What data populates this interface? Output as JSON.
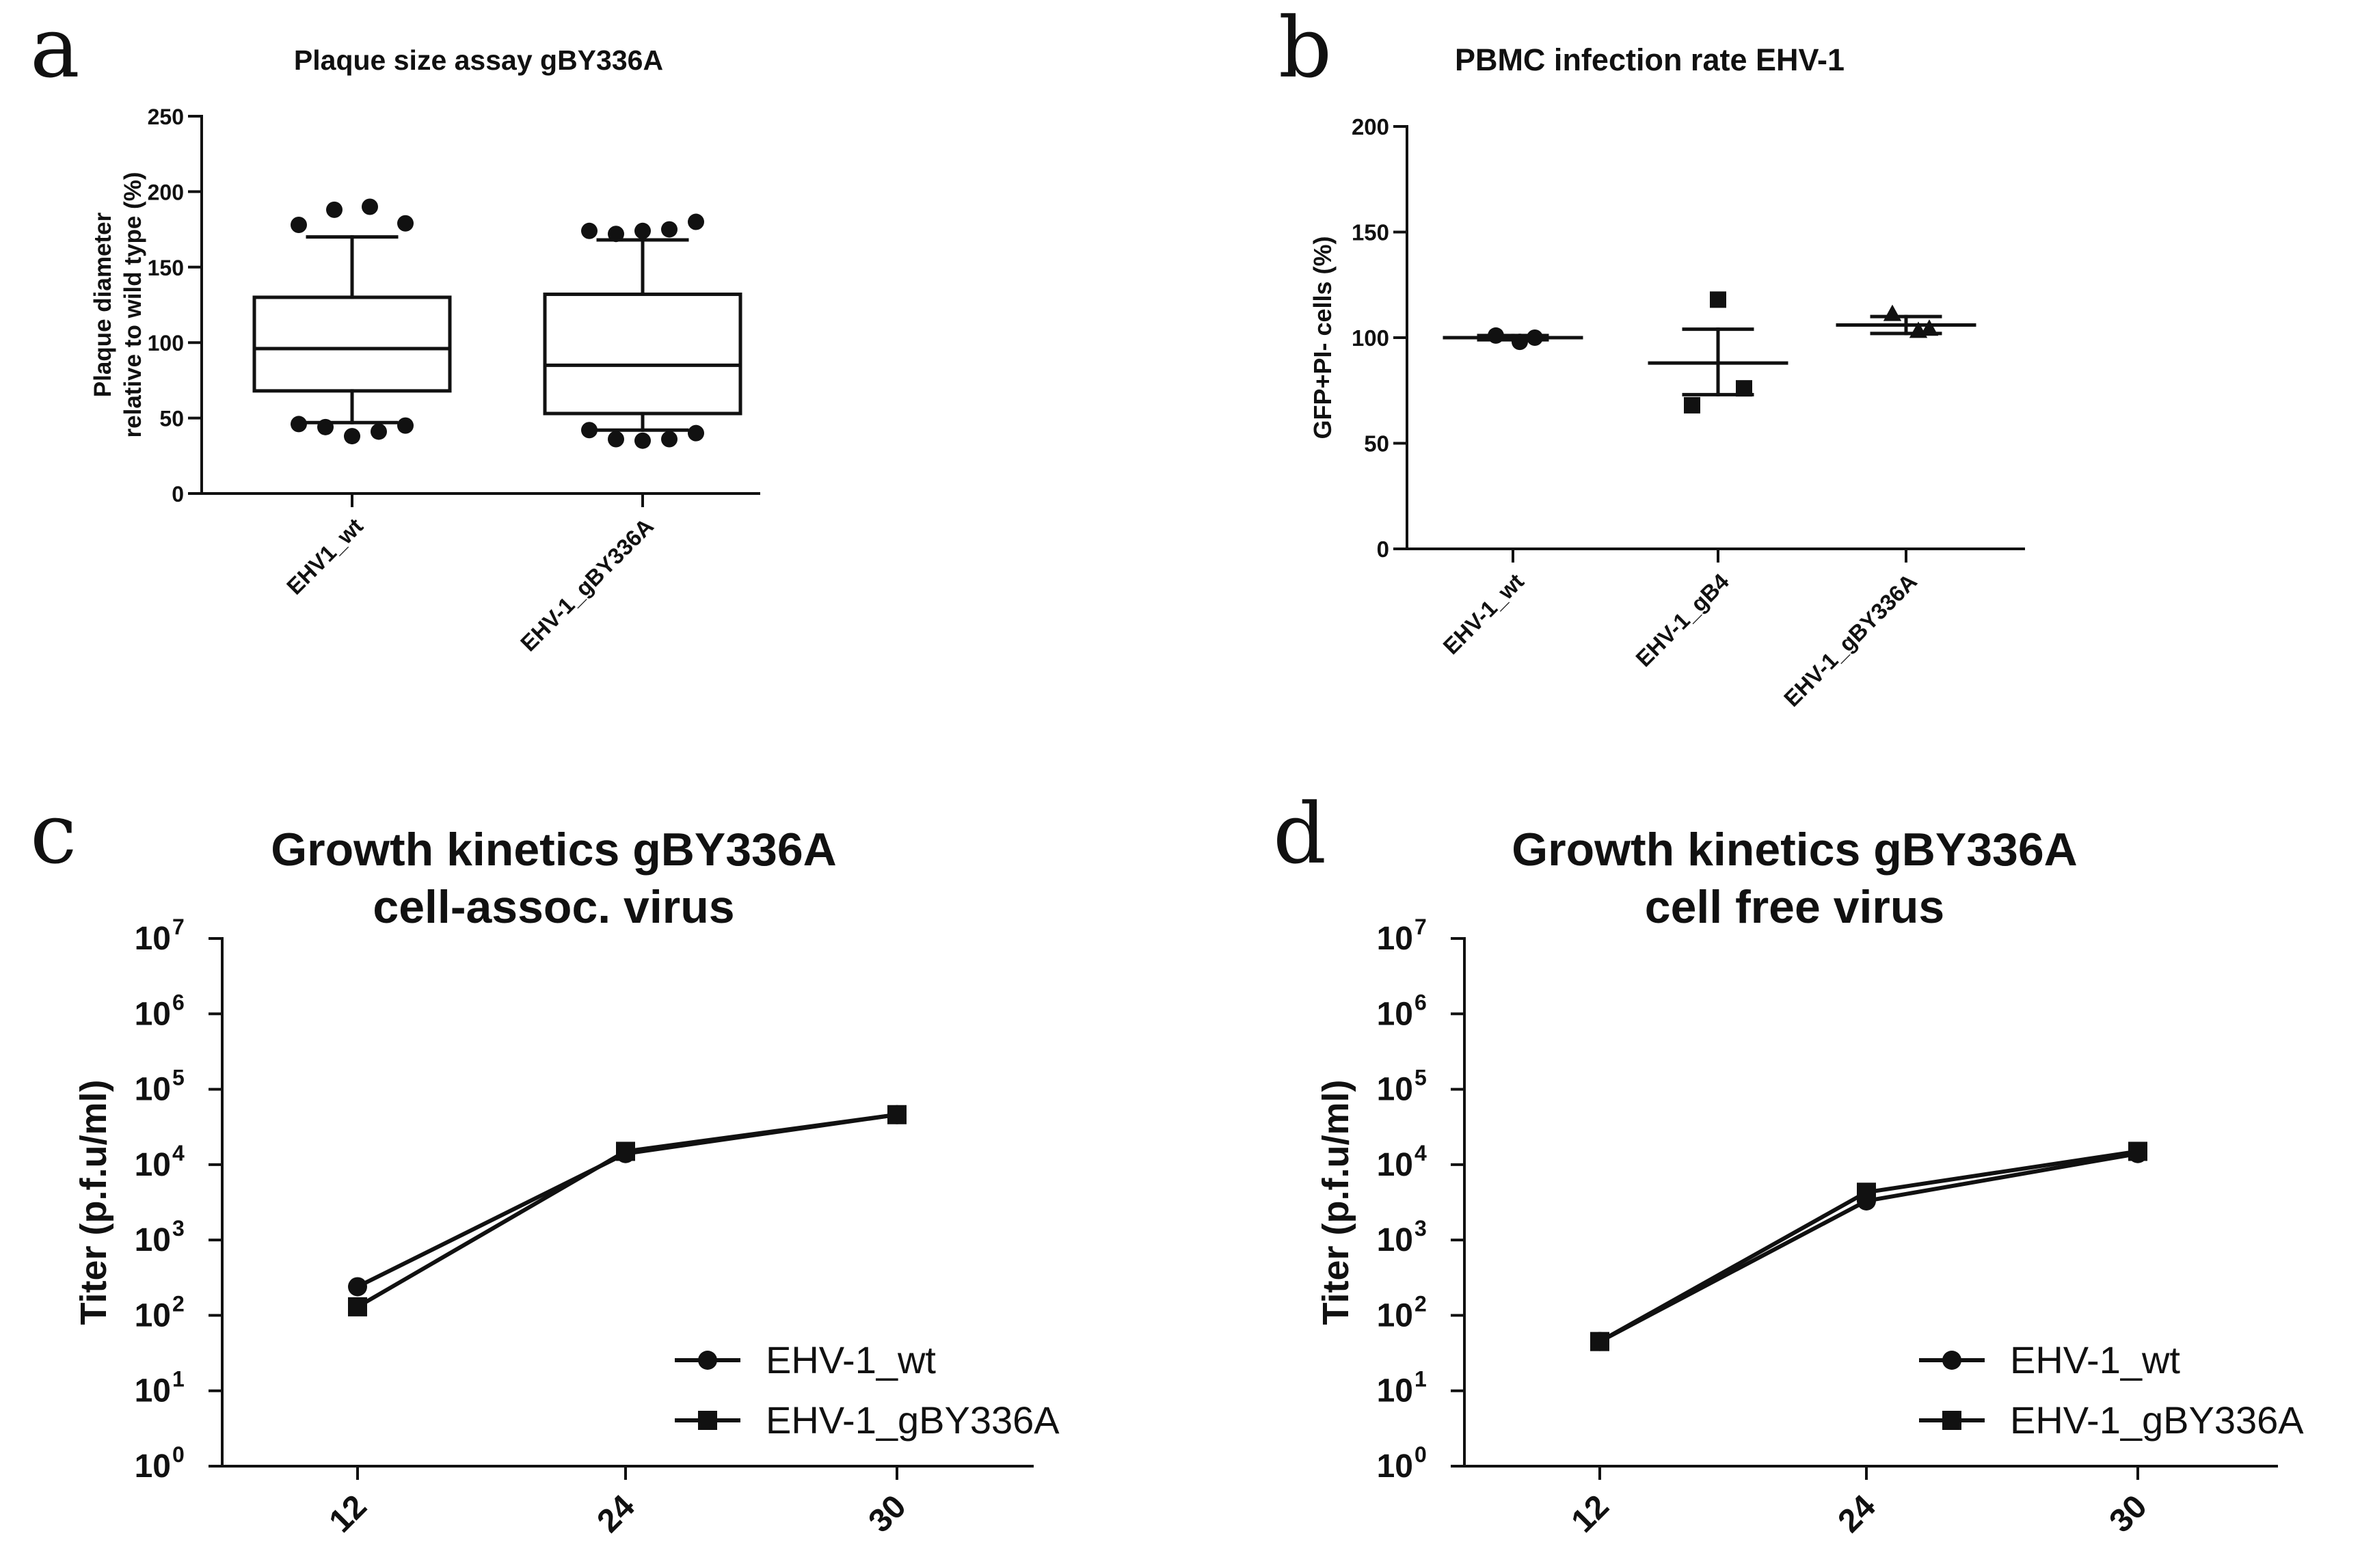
{
  "chart_data": [
    {
      "panel": "a",
      "type": "box",
      "title": "Plaque size assay gBY336A",
      "ylabel_lines": [
        "Plaque diameter",
        "relative to wild type (%)"
      ],
      "ylim": [
        0,
        250
      ],
      "yticks": [
        0,
        50,
        100,
        150,
        200,
        250
      ],
      "categories": [
        "EHV1_wt",
        "EHV-1_gBY336A"
      ],
      "boxes": [
        {
          "category": "EHV1_wt",
          "whisker_low": 47,
          "q1": 68,
          "median": 96,
          "q3": 130,
          "whisker_high": 170,
          "outliers": [
            46,
            44,
            38,
            41,
            45,
            178,
            188,
            190,
            179
          ]
        },
        {
          "category": "EHV-1_gBY336A",
          "whisker_low": 42,
          "q1": 53,
          "median": 85,
          "q3": 132,
          "whisker_high": 168,
          "outliers": [
            42,
            36,
            35,
            36,
            40,
            174,
            172,
            174,
            175,
            180
          ]
        }
      ]
    },
    {
      "panel": "b",
      "type": "scatter",
      "title": "PBMC infection rate EHV-1",
      "ylabel": "GFP+PI- cells (%)",
      "ylim": [
        0,
        200
      ],
      "yticks": [
        0,
        50,
        100,
        150,
        200
      ],
      "categories": [
        "EHV-1_wt",
        "EHV-1_gB4",
        "EHV-1_gBY336A"
      ],
      "groups": [
        {
          "category": "EHV-1_wt",
          "marker": "circle",
          "points": [
            101,
            98,
            100
          ],
          "mean": 100,
          "sem_low": 99,
          "sem_high": 101
        },
        {
          "category": "EHV-1_gB4",
          "marker": "square",
          "points": [
            118,
            68,
            76
          ],
          "mean": 88,
          "sem_low": 73,
          "sem_high": 104
        },
        {
          "category": "EHV-1_gBY336A",
          "marker": "triangle",
          "points": [
            111,
            103,
            104
          ],
          "mean": 106,
          "sem_low": 102,
          "sem_high": 110
        }
      ]
    },
    {
      "panel": "c",
      "type": "line",
      "title_lines": [
        "Growth kinetics gBY336A",
        "cell-assoc. virus"
      ],
      "ylabel": "Titer (p.f.u/ml)",
      "yscale": "log",
      "ytick_exponents": [
        0,
        1,
        2,
        3,
        4,
        5,
        6,
        7
      ],
      "x": [
        12,
        24,
        30
      ],
      "series": [
        {
          "name": "EHV-1_wt",
          "marker": "circle",
          "values": [
            240,
            14000,
            46000
          ]
        },
        {
          "name": "EHV-1_gBY336A",
          "marker": "square",
          "values": [
            130,
            15000,
            46000
          ]
        }
      ],
      "legend": "bottom-right"
    },
    {
      "panel": "d",
      "type": "line",
      "title_lines": [
        "Growth kinetics gBY336A",
        "cell free virus"
      ],
      "ylabel": "Titer (p.f.u/ml)",
      "yscale": "log",
      "ytick_exponents": [
        0,
        1,
        2,
        3,
        4,
        5,
        6,
        7
      ],
      "x": [
        12,
        24,
        30
      ],
      "series": [
        {
          "name": "EHV-1_wt",
          "marker": "circle",
          "values": [
            45,
            3300,
            14000
          ]
        },
        {
          "name": "EHV-1_gBY336A",
          "marker": "square",
          "values": [
            45,
            4300,
            15000
          ]
        }
      ],
      "legend": "bottom-right"
    }
  ]
}
